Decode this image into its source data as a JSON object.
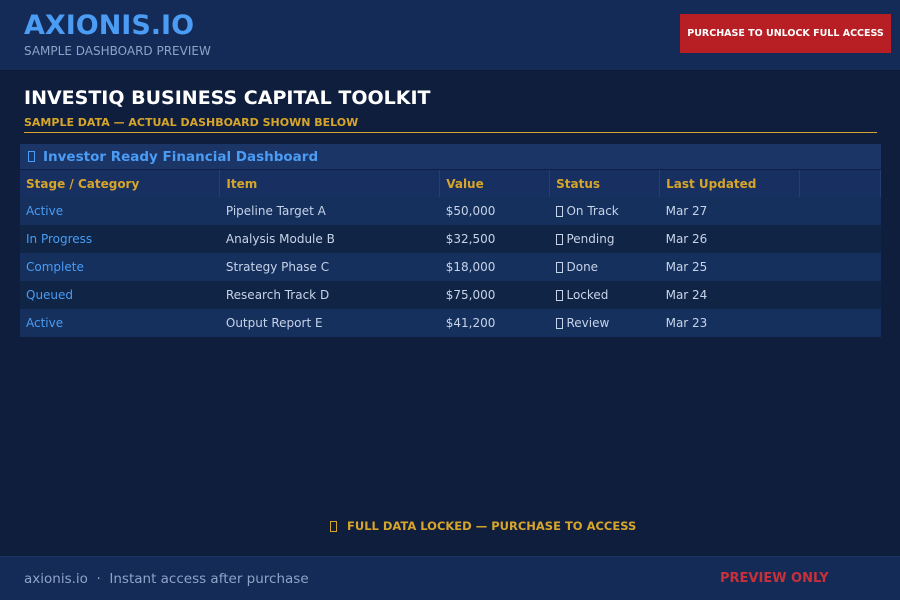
{
  "header": {
    "logo": "AXIONIS.IO",
    "subtitle": "SAMPLE DASHBOARD PREVIEW",
    "purchase_button": "PURCHASE TO UNLOCK FULL ACCESS"
  },
  "page": {
    "title": "INVESTIQ BUSINESS CAPITAL TOOLKIT",
    "subtitle": "SAMPLE DATA — ACTUAL DASHBOARD SHOWN BELOW"
  },
  "panel": {
    "title": "Investor Ready Financial Dashboard",
    "icon": "missing-glyph-icon",
    "columns": [
      "Stage / Category",
      "Item",
      "Value",
      "Status",
      "Last Updated",
      ""
    ],
    "rows": [
      {
        "stage": "Active",
        "item": "Pipeline Target A",
        "value": "$50,000",
        "status": "On Track",
        "updated": "Mar 27"
      },
      {
        "stage": "In Progress",
        "item": "Analysis Module B",
        "value": "$32,500",
        "status": "Pending",
        "updated": "Mar 26"
      },
      {
        "stage": "Complete",
        "item": "Strategy Phase C",
        "value": "$18,000",
        "status": "Done",
        "updated": "Mar 25"
      },
      {
        "stage": "Queued",
        "item": "Research Track D",
        "value": "$75,000",
        "status": "Locked",
        "updated": "Mar 24"
      },
      {
        "stage": "Active",
        "item": "Output Report E",
        "value": "$41,200",
        "status": "Review",
        "updated": "Mar 23"
      }
    ]
  },
  "locked_notice": "FULL DATA LOCKED — PURCHASE TO ACCESS",
  "footer": {
    "left": "axionis.io  ·  Instant access after purchase",
    "right": "PREVIEW ONLY"
  },
  "colors": {
    "accent": "#4a9cf5",
    "gold": "#d7a52a",
    "cta": "#b81f24"
  }
}
